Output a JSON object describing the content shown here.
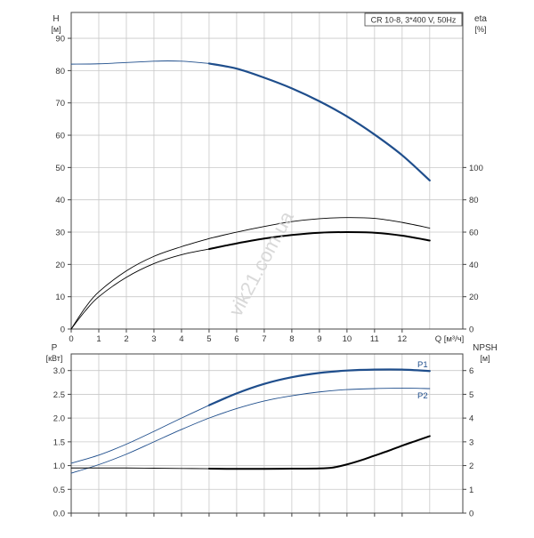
{
  "chart_data": [
    {
      "type": "line",
      "title": "CR 10-8, 3*400 V, 50Hz",
      "left_axis": {
        "label": "H",
        "unit": "[м]",
        "range": [
          0,
          98
        ],
        "ticks": [
          0,
          10,
          20,
          30,
          40,
          50,
          60,
          70,
          80,
          90
        ]
      },
      "right_axis": {
        "label": "eta",
        "unit": "[%]",
        "range": [
          0,
          196
        ],
        "ticks": [
          0,
          20,
          40,
          60,
          80,
          100
        ]
      },
      "x_axis": {
        "label": "Q [м³/ч]",
        "range": [
          0,
          14.2
        ],
        "ticks": [
          0,
          1,
          2,
          3,
          4,
          5,
          6,
          7,
          8,
          9,
          10,
          11,
          12
        ]
      },
      "grid": true,
      "series": [
        {
          "id": "head_thin",
          "axis": "left",
          "style": "blue-thin",
          "x": [
            0,
            1,
            2,
            3,
            3.5,
            4,
            4.5,
            5
          ],
          "y": [
            82,
            82.1,
            82.5,
            82.9,
            83,
            82.9,
            82.6,
            82.2
          ]
        },
        {
          "id": "head",
          "axis": "left",
          "style": "blue-thick",
          "x": [
            5,
            6,
            7,
            8,
            9,
            10,
            11,
            12,
            13
          ],
          "y": [
            82.2,
            80.6,
            77.8,
            74.5,
            70.5,
            65.8,
            60.2,
            53.8,
            46
          ]
        },
        {
          "id": "eta_outer_thin",
          "axis": "right",
          "style": "black-thin",
          "x": [
            0,
            0.5,
            1,
            2,
            3,
            4,
            5
          ],
          "y": [
            0,
            13,
            23,
            36,
            45,
            51,
            56
          ]
        },
        {
          "id": "eta_outer",
          "axis": "right",
          "style": "black-thin",
          "x": [
            5,
            6,
            7,
            8,
            9,
            10,
            11,
            12,
            13
          ],
          "y": [
            56,
            60,
            63.5,
            66.5,
            68.3,
            69,
            68.5,
            66,
            62.5
          ]
        },
        {
          "id": "eta_inner_thin",
          "axis": "right",
          "style": "black-thin",
          "x": [
            0,
            0.5,
            1,
            2,
            3,
            4,
            5
          ],
          "y": [
            0,
            11,
            20,
            32,
            40.5,
            46,
            49.5
          ]
        },
        {
          "id": "eta_inner",
          "axis": "right",
          "style": "black-thick",
          "x": [
            5,
            6,
            7,
            8,
            9,
            10,
            11,
            12,
            13
          ],
          "y": [
            49.5,
            53,
            56,
            58.2,
            59.6,
            60,
            59.6,
            57.8,
            54.8
          ]
        }
      ]
    },
    {
      "type": "line",
      "left_axis": {
        "label": "P",
        "unit": "[кВт]",
        "range": [
          0,
          3.35
        ],
        "ticks": [
          "0.0",
          "0.5",
          "1.0",
          "1.5",
          "2.0",
          "2.5",
          "3.0"
        ]
      },
      "right_axis": {
        "label": "NPSH",
        "unit": "[м]",
        "range": [
          0,
          6.7
        ],
        "ticks": [
          0,
          1,
          2,
          3,
          4,
          5,
          6
        ]
      },
      "x_axis": {
        "range": [
          0,
          14.2
        ],
        "ticks": [
          0,
          1,
          2,
          3,
          4,
          5,
          6,
          7,
          8,
          9,
          10,
          11,
          12
        ]
      },
      "grid": true,
      "series": [
        {
          "id": "p1_thin",
          "axis": "left",
          "style": "blue-thin",
          "x": [
            0,
            1,
            2,
            3,
            4,
            5
          ],
          "y": [
            1.05,
            1.22,
            1.45,
            1.72,
            2.0,
            2.27
          ]
        },
        {
          "id": "p1",
          "axis": "left",
          "style": "blue-thick",
          "name": "P1",
          "x": [
            5,
            6,
            7,
            8,
            9,
            10,
            11,
            12,
            13
          ],
          "y": [
            2.27,
            2.52,
            2.72,
            2.86,
            2.95,
            3.0,
            3.02,
            3.02,
            2.99
          ]
        },
        {
          "id": "p2",
          "axis": "left",
          "style": "blue-thin",
          "name": "P2",
          "x": [
            0,
            1,
            2,
            3,
            4,
            5,
            6,
            7,
            8,
            9,
            10,
            11,
            12,
            13
          ],
          "y": [
            0.84,
            1.02,
            1.24,
            1.5,
            1.76,
            2.0,
            2.2,
            2.36,
            2.47,
            2.55,
            2.6,
            2.62,
            2.63,
            2.62
          ]
        },
        {
          "id": "npsh_thin",
          "axis": "right",
          "style": "black-thin",
          "x": [
            0,
            1,
            2,
            3,
            4,
            5
          ],
          "y": [
            1.9,
            1.9,
            1.9,
            1.89,
            1.88,
            1.87
          ]
        },
        {
          "id": "npsh",
          "axis": "right",
          "style": "black-thick",
          "x": [
            5,
            6,
            7,
            8,
            9,
            9.5,
            10,
            10.5,
            11,
            11.5,
            12,
            12.5,
            13
          ],
          "y": [
            1.87,
            1.86,
            1.86,
            1.87,
            1.88,
            1.92,
            2.05,
            2.22,
            2.42,
            2.62,
            2.84,
            3.04,
            3.24
          ]
        }
      ],
      "series_labels": [
        {
          "text": "P1",
          "series": "p1"
        },
        {
          "text": "P2",
          "series": "p2"
        }
      ]
    }
  ],
  "watermark": "vik21.com.ua",
  "colors": {
    "blue": "#1f4e8c",
    "grid": "#c8c8c8",
    "axis": "#444444",
    "text": "#333333"
  }
}
